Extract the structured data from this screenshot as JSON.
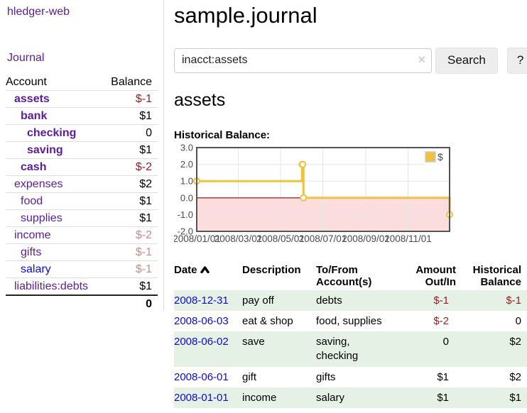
{
  "brand": "hledger-web",
  "nav": {
    "journal_label": "Journal"
  },
  "sidebar": {
    "header": {
      "account": "Account",
      "balance": "Balance"
    },
    "accounts": [
      {
        "name": "assets",
        "level": 1,
        "bold": true,
        "balance": "$-1",
        "balance_class": "neg"
      },
      {
        "name": "bank",
        "level": 2,
        "bold": true,
        "balance": "$1",
        "balance_class": "pos"
      },
      {
        "name": "checking",
        "level": 3,
        "bold": true,
        "balance": "0",
        "balance_class": "pos"
      },
      {
        "name": "saving",
        "level": 3,
        "bold": true,
        "balance": "$1",
        "balance_class": "pos"
      },
      {
        "name": "cash",
        "level": 2,
        "bold": true,
        "balance": "$-2",
        "balance_class": "neg"
      },
      {
        "name": "expenses",
        "level": 1,
        "bold": false,
        "balance": "$2",
        "balance_class": "pos"
      },
      {
        "name": "food",
        "level": 2,
        "bold": false,
        "balance": "$1",
        "balance_class": "pos"
      },
      {
        "name": "supplies",
        "level": 2,
        "bold": false,
        "balance": "$1",
        "balance_class": "pos"
      },
      {
        "name": "income",
        "level": 1,
        "bold": false,
        "balance": "$-2",
        "balance_class": "neg-light"
      },
      {
        "name": "gifts",
        "level": 2,
        "bold": false,
        "balance": "$-1",
        "balance_class": "neg-light"
      },
      {
        "name": "salary",
        "level": 2,
        "bold": false,
        "balance": "$-1",
        "balance_class": "neg-light",
        "link_color": "blue"
      },
      {
        "name": "liabilities:debts",
        "level": 1,
        "bold": false,
        "balance": "$1",
        "balance_class": "pos"
      }
    ],
    "total": "0"
  },
  "header": {
    "title": "sample.journal"
  },
  "search": {
    "value": "inacct:assets",
    "clear_icon": "×",
    "button_label": "Search",
    "help_label": "?"
  },
  "account_page": {
    "heading": "assets",
    "chart_label": "Historical Balance:"
  },
  "chart_data": {
    "type": "line",
    "step": true,
    "title": "Historical Balance:",
    "series": [
      {
        "name": "$",
        "color": "#edc240"
      }
    ],
    "points": [
      {
        "date": "2008-01-01",
        "value": 1
      },
      {
        "date": "2008-06-01",
        "value": 2
      },
      {
        "date": "2008-06-02",
        "value": 2
      },
      {
        "date": "2008-06-03",
        "value": 0
      },
      {
        "date": "2008-12-31",
        "value": -1
      }
    ],
    "x_min": "2008-01-01",
    "x_max": "2008-12-31",
    "x_ticks": [
      "2008/01/01",
      "2008/03/01",
      "2008/05/01",
      "2008/07/01",
      "2008/09/01",
      "2008/11/01"
    ],
    "y_ticks": [
      "3.0",
      "2.0",
      "1.0",
      "0.0",
      "-1.0",
      "-2.0"
    ],
    "ylim": [
      -2,
      3
    ],
    "grid": true,
    "legend_position": "top-right",
    "negative_region_fill": "#fcdddd",
    "zero_line_color": "#8b0000",
    "border_color": "#545454",
    "grid_color": "#e6e6e6",
    "marker_fill": "#ffffff"
  },
  "register": {
    "columns": [
      "Date",
      "Description",
      "To/From Account(s)",
      "Amount Out/In",
      "Historical Balance"
    ],
    "rows": [
      {
        "date": "2008-12-31",
        "description": "pay off",
        "accounts": "debts",
        "amount": "$-1",
        "amount_neg": true,
        "balance": "$-1",
        "balance_neg": true
      },
      {
        "date": "2008-06-03",
        "description": "eat & shop",
        "accounts": "food, supplies",
        "amount": "$-2",
        "amount_neg": true,
        "balance": "0",
        "balance_neg": false
      },
      {
        "date": "2008-06-02",
        "description": "save",
        "accounts": "saving, checking",
        "amount": "0",
        "amount_neg": false,
        "balance": "$2",
        "balance_neg": false
      },
      {
        "date": "2008-06-01",
        "description": "gift",
        "accounts": "gifts",
        "amount": "$1",
        "amount_neg": false,
        "balance": "$2",
        "balance_neg": false
      },
      {
        "date": "2008-01-01",
        "description": "income",
        "accounts": "salary",
        "amount": "$1",
        "amount_neg": false,
        "balance": "$1",
        "balance_neg": false
      }
    ]
  }
}
